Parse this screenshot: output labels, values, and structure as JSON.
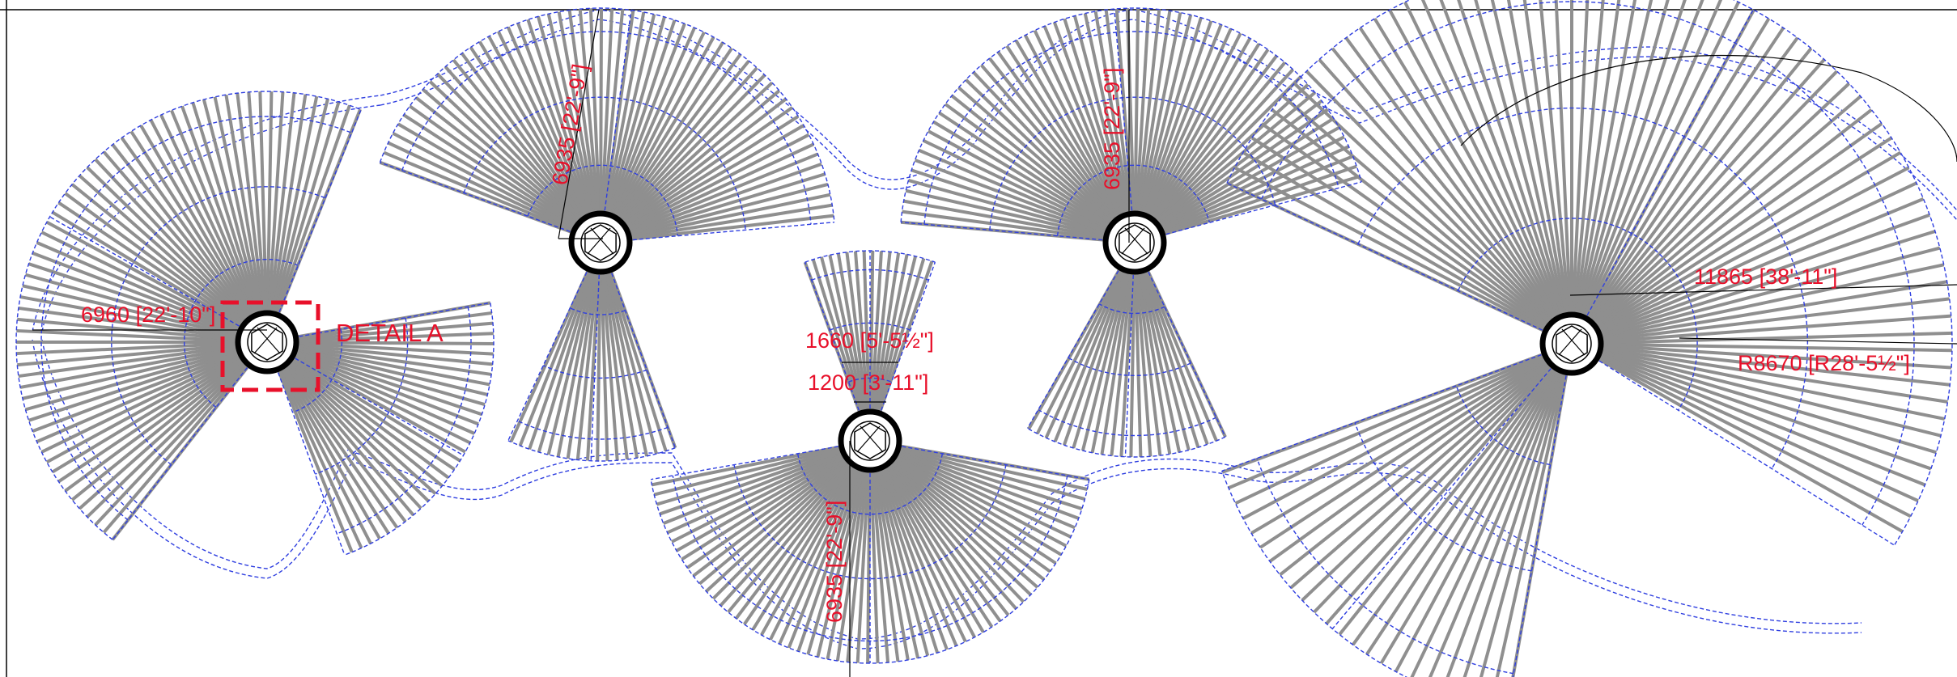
{
  "drawing": {
    "detail_label": "DETAIL A",
    "dimensions": {
      "left_radius": "6960 [22'-10\"]",
      "upper_left_radius": "6935 [22'-9\"]",
      "upper_right_radius": "6935 [22'-9\"]",
      "bottom_radius": "6935 [22'-9\"]",
      "top_width": "1660 [5'-5½\"]",
      "bottom_width": "1200 [3'-11\"]",
      "right_radius": "11865 [38'-11\"]",
      "right_arc_radius": "R8670 [R28'-5½\"]"
    },
    "colors": {
      "rib": "#8f8f8f",
      "rib_outline": "#5e5e5e",
      "construction_line": "#2f3fe0",
      "dimension_text": "#e8102a",
      "column": "#000000"
    }
  }
}
